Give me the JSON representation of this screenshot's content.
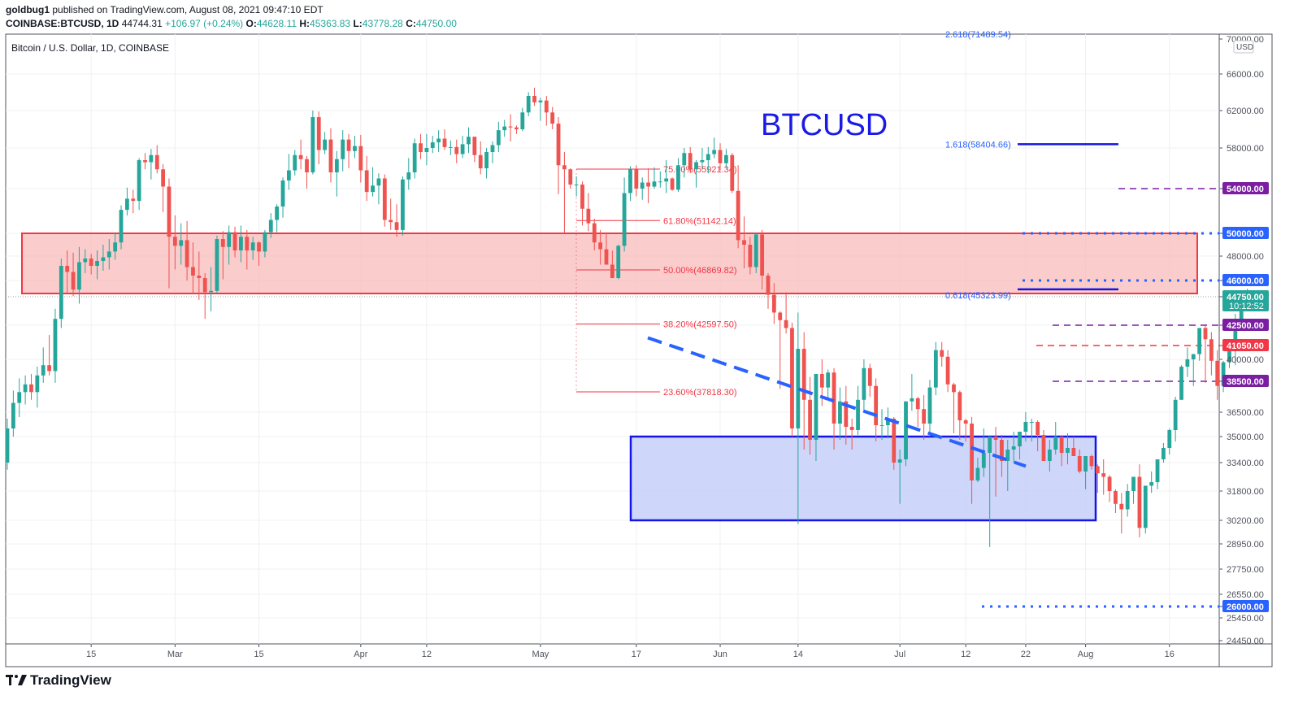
{
  "header": {
    "author": "goldbug1",
    "published_text": "published on TradingView.com, August 08, 2021 09:47:10 EDT",
    "symbol": "COINBASE:BTCUSD, 1D",
    "last": "44744.31",
    "change": "+106.97 (+0.24%)",
    "o_label": "O:",
    "o": "44628.11",
    "h_label": "H:",
    "h": "45363.83",
    "l_label": "L:",
    "l": "43778.28",
    "c_label": "C:",
    "c": "44750.00"
  },
  "footer": {
    "brand": "TradingView"
  },
  "colors": {
    "up": "#26a69a",
    "down": "#ef5350",
    "accent": "#2962ff",
    "fib": "#f23645",
    "box_red": "#f8bbbb",
    "box_blue": "#c5cff8",
    "purple": "#7b1fa2",
    "level_blue": "#2962ff"
  },
  "chart_data": {
    "type": "candlestick",
    "title": "Bitcoin / U.S. Dollar, 1D, COINBASE",
    "watermark": "BTCUSD",
    "currency": "USD",
    "ylim": [
      24450,
      70000
    ],
    "y_ticks": [
      "70000.00",
      "66000.00",
      "62000.00",
      "58000.00",
      "54000.00",
      "50000.00",
      "48000.00",
      "46000.00",
      "44750.00",
      "42500.00",
      "41050.00",
      "40000.00",
      "38500.00",
      "36500.00",
      "35000.00",
      "33400.00",
      "31800.00",
      "30200.00",
      "28950.00",
      "27750.00",
      "26550.00",
      "26000.00",
      "25450.00",
      "24450.00"
    ],
    "x_ticks": [
      "15",
      "Mar",
      "15",
      "Apr",
      "12",
      "May",
      "17",
      "Jun",
      "14",
      "Jul",
      "12",
      "22",
      "Aug",
      "16"
    ],
    "x_tick_days": [
      14,
      28,
      42,
      59,
      70,
      89,
      105,
      119,
      132,
      149,
      160,
      170,
      180,
      194
    ],
    "candles_ohlc": [
      [
        33400,
        36100,
        33000,
        35500
      ],
      [
        35500,
        37900,
        35000,
        37100
      ],
      [
        37100,
        38700,
        36200,
        37800
      ],
      [
        37800,
        38900,
        37000,
        38300
      ],
      [
        38300,
        39000,
        37300,
        37800
      ],
      [
        37800,
        39500,
        36800,
        38900
      ],
      [
        38900,
        40900,
        38400,
        39600
      ],
      [
        39600,
        41800,
        38900,
        39200
      ],
      [
        39200,
        43800,
        38400,
        43000
      ],
      [
        43000,
        47800,
        42300,
        47200
      ],
      [
        47200,
        48500,
        45000,
        46700
      ],
      [
        46700,
        48300,
        44800,
        45300
      ],
      [
        45300,
        48800,
        44200,
        47500
      ],
      [
        47500,
        48600,
        46600,
        47800
      ],
      [
        47800,
        48200,
        46500,
        47200
      ],
      [
        47200,
        48500,
        46100,
        47600
      ],
      [
        47600,
        49000,
        46800,
        47900
      ],
      [
        47900,
        49500,
        46900,
        48400
      ],
      [
        48400,
        50000,
        47700,
        49200
      ],
      [
        49200,
        52500,
        48600,
        52100
      ],
      [
        52100,
        54100,
        51600,
        53100
      ],
      [
        53100,
        53900,
        51800,
        52900
      ],
      [
        52900,
        57000,
        52100,
        56800
      ],
      [
        56800,
        57500,
        55900,
        56600
      ],
      [
        56600,
        57900,
        54900,
        57300
      ],
      [
        57300,
        58300,
        55500,
        55900
      ],
      [
        55900,
        56400,
        51900,
        54200
      ],
      [
        54200,
        55000,
        45400,
        49700
      ],
      [
        49700,
        51600,
        46900,
        48900
      ],
      [
        48900,
        50900,
        47300,
        49400
      ],
      [
        49400,
        51100,
        46000,
        47100
      ],
      [
        47100,
        49200,
        45000,
        46400
      ],
      [
        46400,
        48400,
        44500,
        46200
      ],
      [
        46200,
        46600,
        43000,
        45100
      ],
      [
        45100,
        47100,
        43600,
        45200
      ],
      [
        45200,
        49800,
        45000,
        49500
      ],
      [
        49500,
        50200,
        46100,
        48800
      ],
      [
        48800,
        50700,
        47300,
        50100
      ],
      [
        50100,
        50600,
        47900,
        48500
      ],
      [
        48500,
        50700,
        47500,
        49700
      ],
      [
        49700,
        50300,
        46900,
        48500
      ],
      [
        48500,
        49700,
        47700,
        49200
      ],
      [
        49200,
        49300,
        47200,
        48400
      ],
      [
        48400,
        50300,
        47900,
        50100
      ],
      [
        50100,
        51800,
        49600,
        51200
      ],
      [
        51200,
        52600,
        50100,
        52400
      ],
      [
        52400,
        55100,
        51400,
        54800
      ],
      [
        54800,
        57400,
        53900,
        55800
      ],
      [
        55800,
        57800,
        55300,
        57300
      ],
      [
        57300,
        58900,
        55900,
        56900
      ],
      [
        56900,
        57200,
        54000,
        55600
      ],
      [
        55600,
        62000,
        55400,
        61300
      ],
      [
        61300,
        61900,
        56400,
        57800
      ],
      [
        57800,
        59700,
        57400,
        58900
      ],
      [
        58900,
        60100,
        54600,
        55600
      ],
      [
        55600,
        57700,
        53300,
        56900
      ],
      [
        56900,
        59900,
        55700,
        58900
      ],
      [
        58900,
        59500,
        56000,
        57700
      ],
      [
        57700,
        59300,
        57000,
        58200
      ],
      [
        58200,
        59400,
        54600,
        55800
      ],
      [
        55800,
        57200,
        52900,
        53700
      ],
      [
        53700,
        56100,
        53300,
        54300
      ],
      [
        54300,
        55500,
        52600,
        55000
      ],
      [
        55000,
        55400,
        50600,
        51200
      ],
      [
        51200,
        53100,
        50300,
        51000
      ],
      [
        51000,
        52600,
        49700,
        50300
      ],
      [
        50300,
        55200,
        49800,
        54900
      ],
      [
        54900,
        57000,
        53900,
        55600
      ],
      [
        55600,
        59000,
        55000,
        58500
      ],
      [
        58500,
        59500,
        56900,
        57600
      ],
      [
        57600,
        59500,
        56300,
        58000
      ],
      [
        58000,
        59300,
        57500,
        58600
      ],
      [
        58600,
        59900,
        57600,
        59000
      ],
      [
        59000,
        60000,
        57800,
        58100
      ],
      [
        58100,
        58800,
        57300,
        58100
      ],
      [
        58100,
        58900,
        56500,
        57400
      ],
      [
        57400,
        59300,
        57000,
        58400
      ],
      [
        58400,
        60200,
        57500,
        59200
      ],
      [
        59200,
        59200,
        56600,
        57300
      ],
      [
        57300,
        58700,
        55400,
        56000
      ],
      [
        56000,
        58000,
        55000,
        57600
      ],
      [
        57600,
        58700,
        56500,
        58300
      ],
      [
        58300,
        60800,
        57600,
        59900
      ],
      [
        59900,
        61000,
        59200,
        60300
      ],
      [
        60300,
        61600,
        58700,
        60200
      ],
      [
        60200,
        60400,
        59500,
        60000
      ],
      [
        60000,
        62300,
        59800,
        61800
      ],
      [
        61800,
        64000,
        61400,
        63600
      ],
      [
        63600,
        64500,
        62500,
        62900
      ],
      [
        62900,
        63400,
        60900,
        63100
      ],
      [
        63100,
        63600,
        60400,
        61800
      ],
      [
        61800,
        62400,
        60000,
        60600
      ],
      [
        60600,
        61300,
        53500,
        56300
      ],
      [
        56300,
        57600,
        50000,
        55900
      ],
      [
        55900,
        56000,
        54000,
        54400
      ],
      [
        54400,
        55200,
        53300,
        54400
      ],
      [
        54400,
        54700,
        50700,
        52200
      ],
      [
        52200,
        53600,
        50200,
        50900
      ],
      [
        50900,
        51300,
        48500,
        49200
      ],
      [
        49200,
        50300,
        47300,
        48600
      ],
      [
        48600,
        50000,
        47300,
        47300
      ],
      [
        47300,
        48500,
        46200,
        46200
      ],
      [
        46200,
        49000,
        46100,
        48900
      ],
      [
        48900,
        55100,
        48400,
        53600
      ],
      [
        53600,
        56200,
        52900,
        55900
      ],
      [
        55900,
        56300,
        53300,
        54000
      ],
      [
        54000,
        55100,
        53000,
        54600
      ],
      [
        54600,
        56000,
        52700,
        54200
      ],
      [
        54200,
        56100,
        54000,
        54700
      ],
      [
        54700,
        55700,
        54100,
        54700
      ],
      [
        54700,
        56800,
        53600,
        55000
      ],
      [
        55000,
        55100,
        53800,
        53900
      ],
      [
        53900,
        57000,
        53700,
        56300
      ],
      [
        56300,
        58000,
        55100,
        57500
      ],
      [
        57500,
        58100,
        55500,
        55900
      ],
      [
        55900,
        56800,
        54100,
        56600
      ],
      [
        56600,
        58000,
        55900,
        56800
      ],
      [
        56800,
        58100,
        55500,
        57400
      ],
      [
        57400,
        59100,
        57000,
        57800
      ],
      [
        57800,
        58500,
        55800,
        56500
      ],
      [
        56500,
        57900,
        56000,
        57300
      ],
      [
        57300,
        57500,
        53600,
        53800
      ],
      [
        53800,
        56300,
        48700,
        49400
      ],
      [
        49400,
        51500,
        47000,
        49000
      ],
      [
        49000,
        49700,
        46500,
        47100
      ],
      [
        47100,
        50000,
        46600,
        49900
      ],
      [
        49900,
        50300,
        45300,
        46400
      ],
      [
        46400,
        46600,
        43800,
        44900
      ],
      [
        44900,
        45800,
        42600,
        43500
      ],
      [
        43500,
        43600,
        38000,
        42900
      ],
      [
        42900,
        45100,
        41900,
        42300
      ],
      [
        42300,
        42700,
        35000,
        35500
      ],
      [
        35500,
        43500,
        30000,
        40800
      ],
      [
        40800,
        42000,
        34200,
        37300
      ],
      [
        37300,
        38800,
        33900,
        34800
      ],
      [
        34800,
        39000,
        33500,
        39000
      ],
      [
        39000,
        40000,
        36900,
        38100
      ],
      [
        38100,
        39300,
        37400,
        39100
      ],
      [
        39100,
        39400,
        34200,
        35800
      ],
      [
        35800,
        38100,
        34800,
        37200
      ],
      [
        37200,
        38200,
        34500,
        35600
      ],
      [
        35600,
        36100,
        34200,
        35400
      ],
      [
        35400,
        38200,
        35100,
        37300
      ],
      [
        37300,
        40000,
        36500,
        39400
      ],
      [
        39400,
        39700,
        37500,
        38200
      ],
      [
        38200,
        38700,
        34700,
        35700
      ],
      [
        35700,
        36700,
        34800,
        35700
      ],
      [
        35700,
        36800,
        34900,
        36100
      ],
      [
        36100,
        36200,
        33000,
        33400
      ],
      [
        33400,
        34200,
        31100,
        33600
      ],
      [
        33600,
        37200,
        33200,
        37200
      ],
      [
        37200,
        39000,
        36600,
        37400
      ],
      [
        37400,
        37500,
        35600,
        36700
      ],
      [
        36700,
        37600,
        34800,
        35800
      ],
      [
        35800,
        38600,
        35000,
        38100
      ],
      [
        38100,
        41300,
        37600,
        40700
      ],
      [
        40700,
        41300,
        39500,
        40200
      ],
      [
        40200,
        40700,
        37800,
        38300
      ],
      [
        38300,
        38400,
        35200,
        37800
      ],
      [
        37800,
        37900,
        34800,
        36000
      ],
      [
        36000,
        36100,
        34700,
        35800
      ],
      [
        35800,
        36200,
        31100,
        32400
      ],
      [
        32400,
        33700,
        32300,
        33100
      ],
      [
        33100,
        35500,
        32600,
        34000
      ],
      [
        34000,
        34200,
        28800,
        35000
      ],
      [
        35000,
        35600,
        31500,
        34800
      ],
      [
        34800,
        35100,
        32600,
        33500
      ],
      [
        33500,
        34800,
        31800,
        34200
      ],
      [
        34200,
        35300,
        33400,
        34400
      ],
      [
        34400,
        35300,
        33600,
        35300
      ],
      [
        35300,
        36500,
        34700,
        35900
      ],
      [
        35900,
        36100,
        34700,
        35900
      ],
      [
        35900,
        36000,
        34100,
        35100
      ],
      [
        35100,
        35400,
        33600,
        33500
      ],
      [
        33500,
        34800,
        32900,
        34200
      ],
      [
        34200,
        35900,
        33900,
        35000
      ],
      [
        35000,
        35000,
        33200,
        34000
      ],
      [
        34000,
        35200,
        33300,
        34300
      ],
      [
        34300,
        35000,
        33800,
        33800
      ],
      [
        33800,
        34200,
        32800,
        32900
      ],
      [
        32900,
        33400,
        31900,
        33800
      ],
      [
        33800,
        33900,
        33000,
        33200
      ],
      [
        33200,
        33300,
        31700,
        32800
      ],
      [
        32800,
        33600,
        31600,
        32600
      ],
      [
        32600,
        32700,
        31200,
        31800
      ],
      [
        31800,
        31900,
        30600,
        31100
      ],
      [
        31100,
        31700,
        29500,
        30800
      ],
      [
        30800,
        32200,
        30400,
        31800
      ],
      [
        31800,
        32300,
        31100,
        32600
      ],
      [
        32600,
        33300,
        29300,
        29800
      ],
      [
        29800,
        30700,
        29500,
        32100
      ],
      [
        32100,
        32900,
        31700,
        32300
      ],
      [
        32300,
        33600,
        31900,
        33600
      ],
      [
        33600,
        34600,
        33400,
        34300
      ],
      [
        34300,
        35500,
        33900,
        35400
      ],
      [
        35400,
        37500,
        34700,
        37300
      ],
      [
        37300,
        39600,
        37300,
        39500
      ],
      [
        39500,
        40900,
        38800,
        40000
      ],
      [
        40000,
        40400,
        38200,
        40400
      ],
      [
        40400,
        42300,
        39900,
        42300
      ],
      [
        42300,
        42600,
        38400,
        41500
      ],
      [
        41500,
        42000,
        38900,
        39900
      ],
      [
        39900,
        40700,
        37300,
        38200
      ],
      [
        38200,
        39900,
        37800,
        39800
      ],
      [
        39800,
        41400,
        39400,
        40900
      ],
      [
        40900,
        43400,
        39600,
        42800
      ],
      [
        42800,
        44500,
        42300,
        44600
      ],
      [
        44628,
        45363,
        43778,
        44750
      ]
    ],
    "fib_levels": [
      {
        "label": "75.00%(55921.34)",
        "value": 55921.34
      },
      {
        "label": "61.80%(51142.14)",
        "value": 51142.14
      },
      {
        "label": "50.00%(46869.82)",
        "value": 46869.82
      },
      {
        "label": "38.20%(42597.50)",
        "value": 42597.5
      },
      {
        "label": "23.60%(37818.30)",
        "value": 37818.3
      }
    ],
    "ext_levels": [
      {
        "label": "2.618(71489.54)",
        "value": 71489.54
      },
      {
        "label": "1.618(58404.66)",
        "value": 58404.66
      },
      {
        "label": "0.618(45323.99)",
        "value": 45323.99
      }
    ],
    "level_labels": [
      {
        "label": "54000.00",
        "value": 54000,
        "color": "#7b1fa2",
        "style": "dashed"
      },
      {
        "label": "50000.00",
        "value": 50000,
        "color": "#2962ff",
        "style": "dotted"
      },
      {
        "label": "46000.00",
        "value": 46000,
        "color": "#2962ff",
        "style": "dotted"
      },
      {
        "label": "44750.00",
        "value": 44750,
        "color": "#26a69a",
        "style": "price",
        "sub": "10:12:52"
      },
      {
        "label": "42500.00",
        "value": 42500,
        "color": "#7b1fa2",
        "style": "dashed"
      },
      {
        "label": "41050.00",
        "value": 41050,
        "color": "#f23645",
        "style": "dashed"
      },
      {
        "label": "38500.00",
        "value": 38500,
        "color": "#7b1fa2",
        "style": "dashed"
      },
      {
        "label": "26000.00",
        "value": 26000,
        "color": "#2962ff",
        "style": "dotted"
      }
    ],
    "red_zone": {
      "low": 45000,
      "high": 50000
    },
    "blue_zone": {
      "low": 30200,
      "high": 35000
    },
    "downtrend": {
      "from": 41600,
      "to": 33200
    },
    "grid": true
  }
}
